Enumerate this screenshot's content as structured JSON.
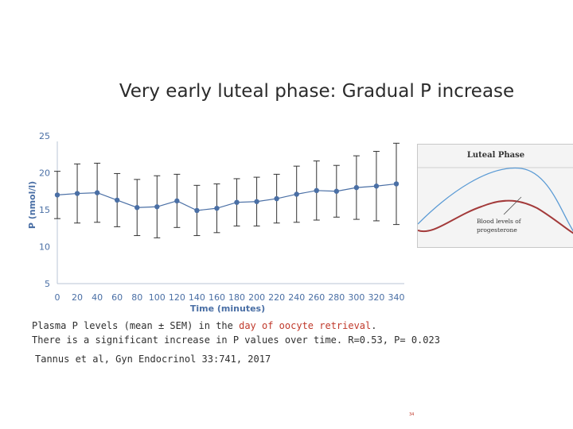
{
  "slide": {
    "title": "Very early luteal phase: Gradual P increase",
    "caption_line1_prefix": "Plasma P levels (mean ± SEM) in the ",
    "caption_line1_highlight": "day of oocyte retrieval",
    "caption_line1_suffix": ".",
    "caption_line2": "There is a significant increase in P values over time. R=0.53, P= 0.023",
    "citation": "Tannus et al, Gyn Endocrinol 33:741, 2017",
    "page_number": "34"
  },
  "colors": {
    "series": "#4a6fa5",
    "error_bars": "#333333",
    "inset_blue": "#5b9bd5",
    "inset_red": "#a33a3a"
  },
  "chart_data": {
    "type": "line",
    "title": "",
    "xlabel": "Time (minutes)",
    "ylabel": "P (nmol/l)",
    "xlim": [
      0,
      340
    ],
    "ylim": [
      5,
      25
    ],
    "x_ticks": [
      0,
      20,
      40,
      60,
      80,
      100,
      120,
      140,
      160,
      180,
      200,
      220,
      240,
      260,
      280,
      300,
      320,
      340
    ],
    "y_ticks": [
      25,
      20,
      15,
      10,
      5
    ],
    "grid": false,
    "legend": "none",
    "series": [
      {
        "x": [
          0,
          20,
          40,
          60,
          80,
          100,
          120,
          140,
          160,
          180,
          200,
          220,
          240,
          260,
          280,
          300,
          320,
          340
        ],
        "y": [
          17.0,
          17.2,
          17.3,
          16.3,
          15.3,
          15.4,
          16.2,
          14.9,
          15.2,
          16.0,
          16.1,
          16.5,
          17.1,
          17.6,
          17.5,
          18.0,
          18.2,
          18.5
        ],
        "err": [
          3.2,
          4.0,
          4.0,
          3.6,
          3.8,
          4.2,
          3.6,
          3.4,
          3.3,
          3.2,
          3.3,
          3.3,
          3.8,
          4.0,
          3.5,
          4.3,
          4.7,
          5.5
        ]
      }
    ]
  },
  "inset": {
    "title": "Luteal Phase",
    "label_line1": "Blood levels of",
    "label_line2": "progesterone"
  }
}
